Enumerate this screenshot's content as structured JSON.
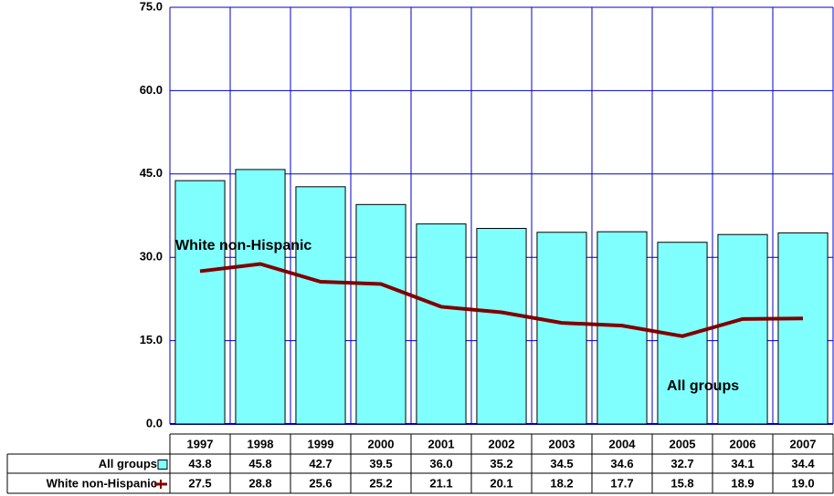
{
  "chart_data": {
    "type": "bar_line",
    "categories": [
      "1997",
      "1998",
      "1999",
      "2000",
      "2001",
      "2002",
      "2003",
      "2004",
      "2005",
      "2006",
      "2007"
    ],
    "series": [
      {
        "name": "All groups",
        "type": "bar",
        "color": "#80ffff",
        "values": [
          43.8,
          45.8,
          42.7,
          39.5,
          36.0,
          35.2,
          34.5,
          34.6,
          32.7,
          34.1,
          34.4
        ],
        "value_labels": [
          "43.8",
          "45.8",
          "42.7",
          "39.5",
          "36.0",
          "35.2",
          "34.5",
          "34.6",
          "32.7",
          "34.1",
          "34.4"
        ]
      },
      {
        "name": "White non-Hispanic",
        "type": "line",
        "color": "#800000",
        "values": [
          27.5,
          28.8,
          25.6,
          25.2,
          21.1,
          20.1,
          18.2,
          17.7,
          15.8,
          18.9,
          19.0
        ],
        "value_labels": [
          "27.5",
          "28.8",
          "25.6",
          "25.2",
          "21.1",
          "20.1",
          "18.2",
          "17.7",
          "15.8",
          "18.9",
          "19.0"
        ]
      }
    ],
    "annotations": [
      "White non-Hispanic",
      "All groups"
    ],
    "ylim": [
      0,
      75
    ],
    "yticks": [
      {
        "value": 0,
        "label": "0.0"
      },
      {
        "value": 15,
        "label": "15.0"
      },
      {
        "value": 30,
        "label": "30.0"
      },
      {
        "value": 45,
        "label": "45.0"
      },
      {
        "value": 60,
        "label": "60.0"
      },
      {
        "value": 75,
        "label": "75.0"
      }
    ],
    "grid": true,
    "grid_color": "#0000cc"
  }
}
